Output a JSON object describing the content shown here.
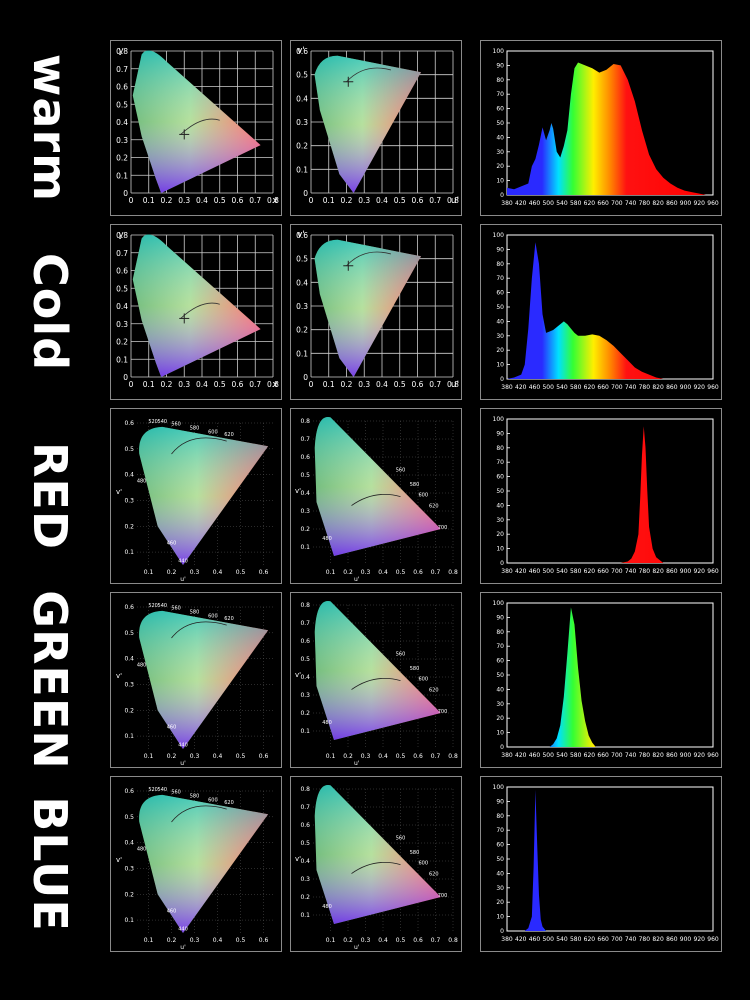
{
  "row_labels": [
    "warm",
    "Cold",
    "RED",
    "GREEN",
    "BLUE"
  ],
  "chromaticity": {
    "xy": {
      "ylabel": "y",
      "xlabel": "x",
      "yticks": [
        "0.8",
        "0.7",
        "0.6",
        "0.5",
        "0.4",
        "0.3",
        "0.2",
        "0.1",
        "0"
      ],
      "xticks": [
        "0",
        "0.1",
        "0.2",
        "0.3",
        "0.4",
        "0.5",
        "0.6",
        "0.7",
        "0.8"
      ]
    },
    "uv": {
      "ylabel": "v'",
      "xlabel": "u'",
      "yticks": [
        "0.6",
        "0.5",
        "0.4",
        "0.3",
        "0.2",
        "0.1",
        "0"
      ],
      "xticks": [
        "0",
        "0.1",
        "0.2",
        "0.3",
        "0.4",
        "0.5",
        "0.6",
        "0.7",
        "0.8"
      ]
    },
    "uv_1976_left": {
      "ylabel": "v'",
      "xlabel": "u'",
      "yticks": [
        "0.6",
        "0.5",
        "0.4",
        "0.3",
        "0.2",
        "0.1"
      ],
      "xticks": [
        "0.1",
        "0.2",
        "0.3",
        "0.4",
        "0.5",
        "0.6"
      ],
      "wavelengths": [
        "520",
        "540",
        "560",
        "580",
        "600",
        "620",
        "480",
        "460",
        "440"
      ]
    },
    "uv_1976_right": {
      "ylabel": "v'",
      "xlabel": "u'",
      "yticks": [
        "0.8",
        "0.7",
        "0.6",
        "0.5",
        "0.4",
        "0.3",
        "0.2",
        "0.1"
      ],
      "xticks": [
        "0.1",
        "0.2",
        "0.3",
        "0.4",
        "0.5",
        "0.6",
        "0.7",
        "0.8"
      ],
      "wavelengths": [
        "560",
        "580",
        "600",
        "620",
        "700",
        "480"
      ]
    }
  },
  "chart_data": [
    {
      "type": "area",
      "row": "warm",
      "xlabel": "",
      "ylabel": "",
      "xticks": [
        "380",
        "420",
        "460",
        "500",
        "540",
        "580",
        "620",
        "660",
        "700",
        "740",
        "780",
        "820",
        "860",
        "900",
        "920",
        "960"
      ],
      "yticks": [
        "100",
        "90",
        "80",
        "70",
        "60",
        "50",
        "40",
        "30",
        "20",
        "10",
        "0"
      ],
      "ylim": [
        0,
        100
      ],
      "x": [
        380,
        400,
        420,
        440,
        450,
        460,
        470,
        480,
        490,
        500,
        505,
        510,
        520,
        530,
        540,
        550,
        560,
        570,
        580,
        600,
        620,
        640,
        660,
        680,
        700,
        720,
        740,
        760,
        780,
        800,
        820,
        840,
        860,
        880,
        900,
        920,
        940,
        960
      ],
      "values": [
        5,
        4,
        6,
        8,
        20,
        25,
        35,
        47,
        38,
        45,
        50,
        46,
        30,
        26,
        34,
        45,
        70,
        88,
        92,
        90,
        88,
        85,
        87,
        91,
        90,
        80,
        65,
        45,
        28,
        18,
        12,
        8,
        5,
        3,
        2,
        1,
        0,
        0
      ]
    },
    {
      "type": "area",
      "row": "Cold",
      "xlabel": "",
      "ylabel": "",
      "xticks": [
        "380",
        "420",
        "460",
        "500",
        "540",
        "580",
        "620",
        "660",
        "700",
        "740",
        "780",
        "820",
        "860",
        "900",
        "920",
        "960"
      ],
      "yticks": [
        "100",
        "90",
        "80",
        "70",
        "60",
        "50",
        "40",
        "30",
        "20",
        "10",
        "0"
      ],
      "ylim": [
        0,
        100
      ],
      "x": [
        380,
        400,
        420,
        430,
        440,
        450,
        460,
        470,
        480,
        490,
        500,
        510,
        520,
        530,
        540,
        550,
        560,
        570,
        580,
        600,
        620,
        640,
        660,
        680,
        700,
        720,
        740,
        760,
        780,
        800,
        820,
        840,
        860,
        960
      ],
      "values": [
        0,
        1,
        3,
        10,
        35,
        70,
        95,
        80,
        45,
        32,
        33,
        34,
        36,
        38,
        40,
        38,
        35,
        32,
        30,
        30,
        31,
        30,
        27,
        23,
        18,
        13,
        8,
        5,
        3,
        1,
        0,
        0,
        0,
        0
      ]
    },
    {
      "type": "area",
      "row": "RED",
      "xlabel": "",
      "ylabel": "",
      "xticks": [
        "380",
        "420",
        "460",
        "500",
        "540",
        "580",
        "620",
        "660",
        "700",
        "740",
        "780",
        "820",
        "860",
        "900",
        "920",
        "960"
      ],
      "yticks": [
        "100",
        "90",
        "80",
        "70",
        "60",
        "50",
        "40",
        "30",
        "20",
        "10",
        "0"
      ],
      "ylim": [
        0,
        100
      ],
      "x": [
        380,
        700,
        720,
        730,
        740,
        750,
        755,
        760,
        765,
        770,
        775,
        780,
        790,
        800,
        820,
        960
      ],
      "values": [
        0,
        0,
        1,
        3,
        8,
        20,
        45,
        75,
        95,
        80,
        50,
        25,
        10,
        4,
        0,
        0
      ]
    },
    {
      "type": "area",
      "row": "GREEN",
      "xlabel": "",
      "ylabel": "",
      "xticks": [
        "380",
        "420",
        "460",
        "500",
        "540",
        "580",
        "620",
        "660",
        "700",
        "740",
        "780",
        "820",
        "860",
        "900",
        "920",
        "960"
      ],
      "yticks": [
        "100",
        "90",
        "80",
        "70",
        "60",
        "50",
        "40",
        "30",
        "20",
        "10",
        "0"
      ],
      "ylim": [
        0,
        100
      ],
      "x": [
        380,
        500,
        510,
        520,
        530,
        540,
        550,
        560,
        570,
        580,
        590,
        600,
        610,
        620,
        630,
        960
      ],
      "values": [
        0,
        0,
        2,
        6,
        15,
        35,
        65,
        97,
        85,
        55,
        32,
        18,
        8,
        3,
        0,
        0
      ]
    },
    {
      "type": "area",
      "row": "BLUE",
      "xlabel": "",
      "ylabel": "",
      "xticks": [
        "380",
        "420",
        "460",
        "500",
        "540",
        "580",
        "620",
        "660",
        "700",
        "740",
        "780",
        "820",
        "860",
        "900",
        "920",
        "960"
      ],
      "yticks": [
        "100",
        "90",
        "80",
        "70",
        "60",
        "50",
        "40",
        "30",
        "20",
        "10",
        "0"
      ],
      "ylim": [
        0,
        100
      ],
      "x": [
        380,
        430,
        440,
        450,
        455,
        460,
        465,
        470,
        475,
        480,
        490,
        960
      ],
      "values": [
        0,
        0,
        2,
        10,
        45,
        98,
        60,
        25,
        8,
        3,
        0,
        0
      ]
    }
  ]
}
